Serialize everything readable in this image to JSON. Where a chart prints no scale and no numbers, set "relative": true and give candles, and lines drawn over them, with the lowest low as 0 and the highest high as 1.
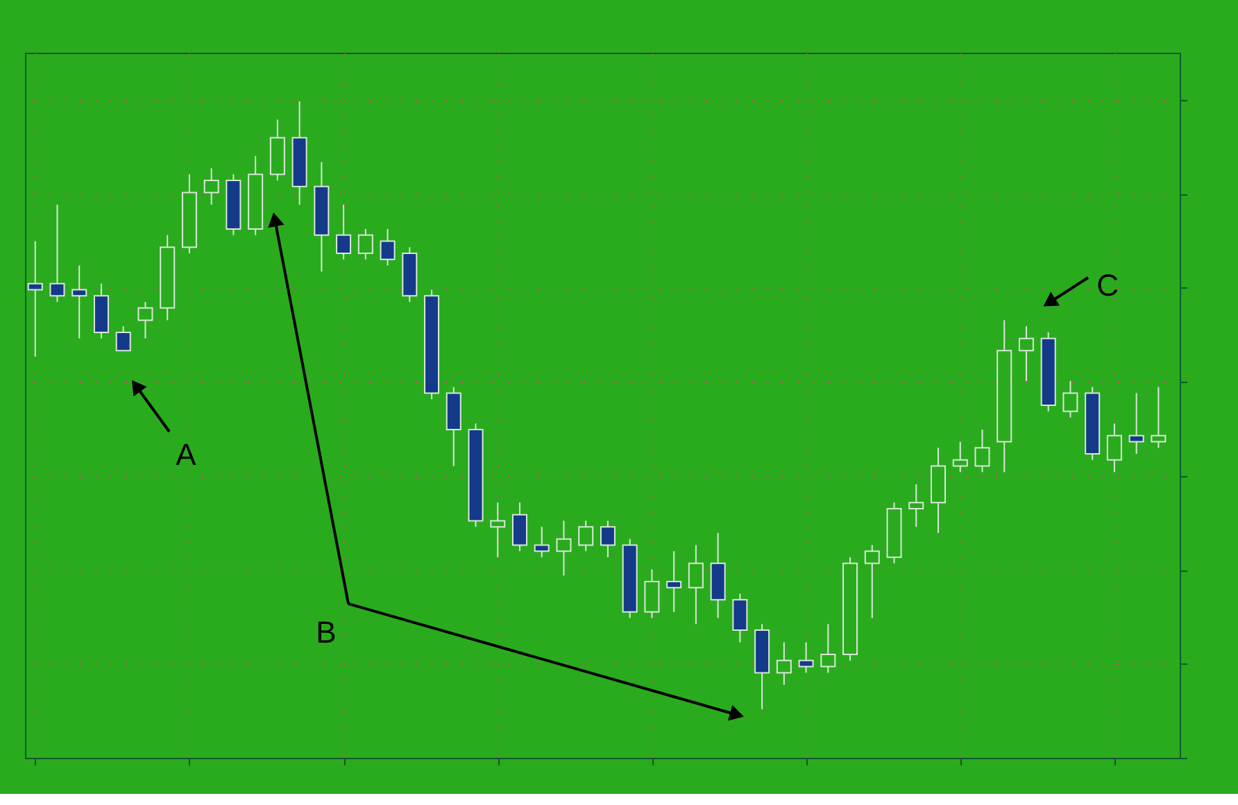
{
  "chart_data": {
    "type": "candlestick",
    "relative": true,
    "grid": true,
    "tick_labels": false,
    "annotations": [
      "A",
      "B",
      "C"
    ],
    "categories": [
      null,
      null,
      null,
      null,
      null,
      null,
      null,
      null,
      null,
      null,
      null,
      null,
      null,
      null,
      null,
      null,
      null,
      null,
      null,
      null,
      null,
      null,
      null,
      null,
      null,
      null,
      null,
      null,
      null,
      null,
      null,
      null,
      null,
      null,
      null,
      null,
      null,
      null,
      null,
      null,
      null,
      null,
      null,
      null,
      null,
      null,
      null,
      null,
      null,
      null,
      null,
      null
    ],
    "ohlc": [
      [
        0.7,
        0.77,
        0.58,
        0.69
      ],
      [
        0.7,
        0.83,
        0.67,
        0.68
      ],
      [
        0.69,
        0.73,
        0.61,
        0.68
      ],
      [
        0.68,
        0.7,
        0.61,
        0.62
      ],
      [
        0.62,
        0.63,
        0.59,
        0.59
      ],
      [
        0.64,
        0.67,
        0.61,
        0.66
      ],
      [
        0.66,
        0.78,
        0.64,
        0.76
      ],
      [
        0.76,
        0.88,
        0.75,
        0.85
      ],
      [
        0.85,
        0.89,
        0.83,
        0.87
      ],
      [
        0.87,
        0.88,
        0.78,
        0.79
      ],
      [
        0.79,
        0.91,
        0.78,
        0.88
      ],
      [
        0.88,
        0.97,
        0.87,
        0.94
      ],
      [
        0.94,
        1.0,
        0.83,
        0.86
      ],
      [
        0.86,
        0.9,
        0.72,
        0.78
      ],
      [
        0.78,
        0.83,
        0.74,
        0.75
      ],
      [
        0.75,
        0.79,
        0.74,
        0.78
      ],
      [
        0.77,
        0.79,
        0.73,
        0.74
      ],
      [
        0.75,
        0.76,
        0.67,
        0.68
      ],
      [
        0.68,
        0.69,
        0.51,
        0.52
      ],
      [
        0.52,
        0.53,
        0.4,
        0.46
      ],
      [
        0.46,
        0.47,
        0.3,
        0.31
      ],
      [
        0.3,
        0.34,
        0.25,
        0.31
      ],
      [
        0.32,
        0.34,
        0.26,
        0.27
      ],
      [
        0.27,
        0.3,
        0.25,
        0.26
      ],
      [
        0.26,
        0.31,
        0.22,
        0.28
      ],
      [
        0.27,
        0.31,
        0.26,
        0.3
      ],
      [
        0.3,
        0.31,
        0.25,
        0.27
      ],
      [
        0.27,
        0.28,
        0.15,
        0.16
      ],
      [
        0.16,
        0.23,
        0.15,
        0.21
      ],
      [
        0.21,
        0.26,
        0.16,
        0.2
      ],
      [
        0.2,
        0.27,
        0.14,
        0.24
      ],
      [
        0.24,
        0.29,
        0.15,
        0.18
      ],
      [
        0.18,
        0.19,
        0.11,
        0.13
      ],
      [
        0.13,
        0.14,
        0.0,
        0.06
      ],
      [
        0.06,
        0.11,
        0.04,
        0.08
      ],
      [
        0.08,
        0.11,
        0.06,
        0.07
      ],
      [
        0.07,
        0.14,
        0.06,
        0.09
      ],
      [
        0.09,
        0.25,
        0.08,
        0.24
      ],
      [
        0.24,
        0.27,
        0.15,
        0.26
      ],
      [
        0.25,
        0.34,
        0.24,
        0.33
      ],
      [
        0.33,
        0.37,
        0.3,
        0.34
      ],
      [
        0.34,
        0.43,
        0.29,
        0.4
      ],
      [
        0.4,
        0.44,
        0.39,
        0.41
      ],
      [
        0.4,
        0.46,
        0.39,
        0.43
      ],
      [
        0.44,
        0.64,
        0.39,
        0.59
      ],
      [
        0.59,
        0.63,
        0.54,
        0.61
      ],
      [
        0.61,
        0.62,
        0.49,
        0.5
      ],
      [
        0.49,
        0.54,
        0.48,
        0.52
      ],
      [
        0.52,
        0.53,
        0.41,
        0.42
      ],
      [
        0.41,
        0.47,
        0.39,
        0.45
      ],
      [
        0.45,
        0.52,
        0.42,
        0.44
      ],
      [
        0.44,
        0.53,
        0.43,
        0.45
      ]
    ]
  }
}
